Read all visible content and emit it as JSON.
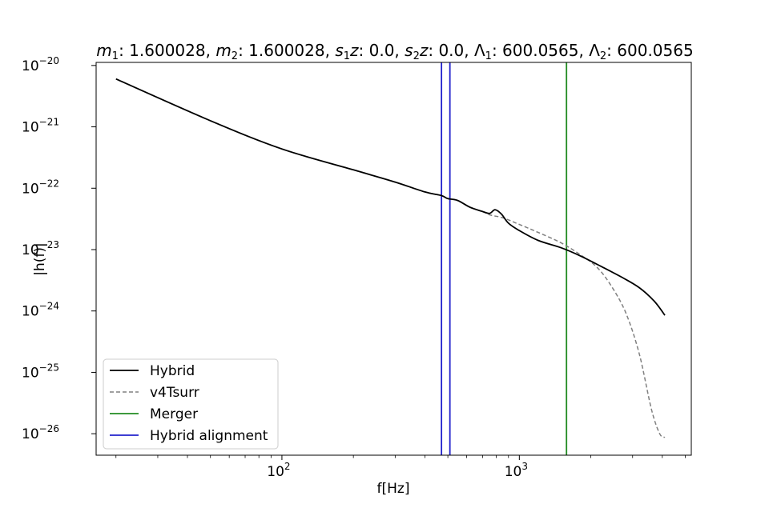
{
  "chart_data": {
    "type": "line",
    "title": {
      "m1_label": "m",
      "m1_sub": "1",
      "m1_value": ": 1.600028, ",
      "m2_label": "m",
      "m2_sub": "2",
      "m2_value": ": 1.600028, ",
      "s1_label": "s",
      "s1_sub": "1",
      "s1_z": "z",
      "s1_value": ": 0.0, ",
      "s2_label": "s",
      "s2_sub": "2",
      "s2_z": "z",
      "s2_value": ": 0.0, ",
      "L1_label": "Λ",
      "L1_sub": "1",
      "L1_value": ": 600.0565, ",
      "L2_label": "Λ",
      "L2_sub": "2",
      "L2_value": ": 600.0565"
    },
    "xlabel": "f[Hz]",
    "ylabel": "|h(f)|",
    "xscale": "log",
    "yscale": "log",
    "xlim": [
      16.5,
      5300
    ],
    "ylim_exp": [
      -26.35,
      -19.95
    ],
    "x_ticks": [
      {
        "value": 100,
        "base": "10",
        "exp": "2"
      },
      {
        "value": 1000,
        "base": "10",
        "exp": "3"
      }
    ],
    "y_ticks": [
      {
        "exp_value": -20,
        "base": "10",
        "exp": "−20"
      },
      {
        "exp_value": -21,
        "base": "10",
        "exp": "−21"
      },
      {
        "exp_value": -22,
        "base": "10",
        "exp": "−22"
      },
      {
        "exp_value": -23,
        "base": "10",
        "exp": "−23"
      },
      {
        "exp_value": -24,
        "base": "10",
        "exp": "−24"
      },
      {
        "exp_value": -25,
        "base": "10",
        "exp": "−25"
      },
      {
        "exp_value": -26,
        "base": "10",
        "exp": "−26"
      }
    ],
    "grid": false,
    "legend_position": "lower-left",
    "legend": [
      "Hybrid",
      "v4Tsurr",
      "Merger",
      "Hybrid alignment"
    ],
    "series": [
      {
        "name": "Hybrid",
        "color": "#000000",
        "style": "solid",
        "points": [
          [
            20,
            -20.22
          ],
          [
            50,
            -20.9
          ],
          [
            100,
            -21.36
          ],
          [
            200,
            -21.7
          ],
          [
            300,
            -21.9
          ],
          [
            400,
            -22.06
          ],
          [
            470,
            -22.12
          ],
          [
            500,
            -22.17
          ],
          [
            550,
            -22.2
          ],
          [
            620,
            -22.31
          ],
          [
            700,
            -22.38
          ],
          [
            750,
            -22.41
          ],
          [
            790,
            -22.35
          ],
          [
            840,
            -22.42
          ],
          [
            900,
            -22.57
          ],
          [
            1000,
            -22.69
          ],
          [
            1200,
            -22.85
          ],
          [
            1500,
            -22.97
          ],
          [
            1800,
            -23.1
          ],
          [
            2200,
            -23.27
          ],
          [
            2700,
            -23.45
          ],
          [
            3200,
            -23.62
          ],
          [
            3700,
            -23.84
          ],
          [
            4100,
            -24.07
          ]
        ]
      },
      {
        "name": "v4Tsurr",
        "color": "#808080",
        "style": "dashed",
        "points": [
          [
            20,
            -20.22
          ],
          [
            50,
            -20.9
          ],
          [
            100,
            -21.36
          ],
          [
            200,
            -21.7
          ],
          [
            300,
            -21.9
          ],
          [
            400,
            -22.06
          ],
          [
            470,
            -22.12
          ],
          [
            500,
            -22.17
          ],
          [
            550,
            -22.2
          ],
          [
            620,
            -22.31
          ],
          [
            700,
            -22.38
          ],
          [
            760,
            -22.44
          ],
          [
            850,
            -22.48
          ],
          [
            1000,
            -22.59
          ],
          [
            1200,
            -22.72
          ],
          [
            1500,
            -22.89
          ],
          [
            1800,
            -23.08
          ],
          [
            2100,
            -23.27
          ],
          [
            2400,
            -23.55
          ],
          [
            2800,
            -24.02
          ],
          [
            3200,
            -24.7
          ],
          [
            3600,
            -25.6
          ],
          [
            3900,
            -26.0
          ],
          [
            4100,
            -26.06
          ]
        ]
      }
    ],
    "vlines": [
      {
        "name": "Merger",
        "x": 1580,
        "color": "#228B22"
      },
      {
        "name": "Hybrid alignment",
        "x": 470,
        "color": "#2222CC"
      },
      {
        "name": "Hybrid alignment",
        "x": 510,
        "color": "#2222CC"
      }
    ]
  }
}
